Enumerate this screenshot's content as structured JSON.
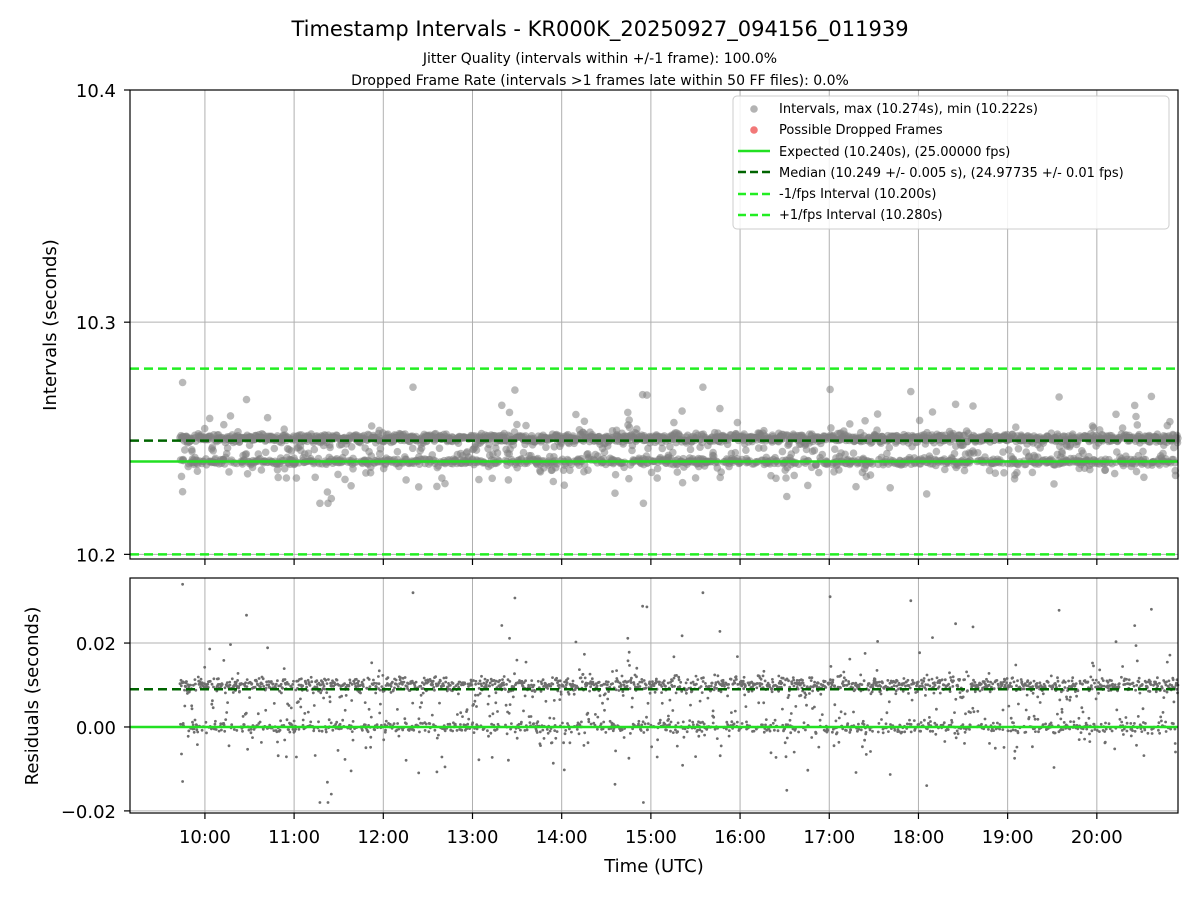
{
  "chart_data": [
    {
      "type": "scatter",
      "title": "Timestamp Intervals - KR000K_20250927_094156_011939",
      "subtitle_1": "Jitter Quality (intervals within +/-1 frame): 100.0%",
      "subtitle_2": "Dropped Frame Rate (intervals >1 frames late within 50 FF files): 0.0%",
      "ylabel": "Intervals (seconds)",
      "ylim": [
        10.198,
        10.4
      ],
      "yticks": [
        "10.2",
        "10.3",
        "10.4"
      ],
      "ytick_values": [
        10.2,
        10.3,
        10.4
      ],
      "grid": true,
      "legend_position": "top-right",
      "legend": [
        "Intervals, max (10.274s), min (10.222s)",
        "Possible Dropped Frames",
        "Expected (10.240s), (25.00000 fps)",
        "Median (10.249 +/- 0.005 s), (24.97735 +/- 0.01 fps)",
        "-1/fps Interval (10.200s)",
        "+1/fps Interval (10.280s)"
      ],
      "reference_lines": {
        "expected": 10.24,
        "median": 10.249,
        "minus_1_fps": 10.2,
        "plus_1_fps": 10.28
      },
      "series": {
        "name": "Intervals",
        "max": 10.274,
        "min": 10.222,
        "primary_levels": [
          10.24,
          10.25
        ],
        "notable_outliers": [
          {
            "time": "09:45",
            "value": 10.274
          },
          {
            "time": "12:20",
            "value": 10.272
          },
          {
            "time": "14:55",
            "value": 10.222
          },
          {
            "time": "15:35",
            "value": 10.272
          },
          {
            "time": "09:45",
            "value": 10.227
          },
          {
            "time": "11:25",
            "value": 10.224
          }
        ]
      },
      "dropped_frames": []
    },
    {
      "type": "scatter",
      "ylabel": "Residuals (seconds)",
      "xlabel": "Time (UTC)",
      "ylim": [
        -0.0205,
        0.0355
      ],
      "yticks": [
        "0.02",
        "0.00",
        "−0.02"
      ],
      "ytick_values": [
        0.02,
        0.0,
        -0.02
      ],
      "xticks": [
        "10:00",
        "11:00",
        "12:00",
        "13:00",
        "14:00",
        "15:00",
        "16:00",
        "17:00",
        "18:00",
        "19:00",
        "20:00"
      ],
      "xtick_hours": [
        10,
        11,
        12,
        13,
        14,
        15,
        16,
        17,
        18,
        19,
        20
      ],
      "xlim_hours": [
        9.16,
        20.91
      ],
      "data_start_hours": 9.72,
      "grid": true,
      "reference_lines": {
        "zero": 0.0,
        "median_residual": 0.009
      },
      "series": {
        "name": "Residuals",
        "max": 0.034,
        "min": -0.018,
        "primary_levels": [
          0.0,
          0.01
        ]
      }
    }
  ],
  "colors": {
    "points": "#808080",
    "dropped": "#f06060",
    "expected": "#22e022",
    "median": "#006400",
    "fps_bounds": "#22ee22",
    "grid": "#b0b0b0"
  }
}
